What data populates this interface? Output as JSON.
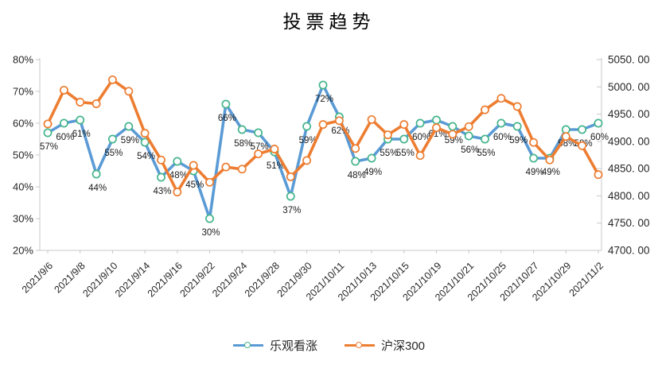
{
  "title": "投票趋势",
  "colors": {
    "axis_line": "#C8C8C8",
    "text": "#262626",
    "optimistic_blue": "#5B9BD5",
    "optimistic_marker_border": "#45B58C",
    "csi300_orange": "#ED7D31"
  },
  "chart_data": {
    "type": "line",
    "title": "投票趋势",
    "n_points": 35,
    "x_tick_labels": [
      "2021/9/6",
      "2021/9/8",
      "2021/9/10",
      "2021/9/14",
      "2021/9/16",
      "2021/9/22",
      "2021/9/24",
      "2021/9/28",
      "2021/9/30",
      "2021/10/11",
      "2021/10/13",
      "2021/10/15",
      "2021/10/19",
      "2021/10/21",
      "2021/10/25",
      "2021/10/27",
      "2021/10/29",
      "2021/11/2"
    ],
    "x_label_every": 2,
    "legend_position": "bottom",
    "grid": "off",
    "left_axis": {
      "min": 20,
      "max": 80,
      "ticks": [
        "80%",
        "70%",
        "60%",
        "50%",
        "40%",
        "30%",
        "20%"
      ]
    },
    "right_axis": {
      "min": 4700,
      "max": 5050,
      "ticks": [
        "5050. 00",
        "5000. 00",
        "4950. 00",
        "4900. 00",
        "4850. 00",
        "4800. 00",
        "4750. 00",
        "4700. 00"
      ]
    },
    "series": [
      {
        "name": "乐观看涨",
        "axis": "left",
        "unit": "%",
        "color": "#5B9BD5",
        "marker_border": "#45B58C",
        "show_data_labels": true,
        "values": [
          57,
          60,
          61,
          44,
          55,
          59,
          54,
          43,
          48,
          45,
          30,
          66,
          58,
          57,
          51,
          37,
          59,
          72,
          62,
          48,
          49,
          55,
          55,
          60,
          61,
          59,
          56,
          55,
          60,
          59,
          49,
          49,
          58,
          58,
          60
        ]
      },
      {
        "name": "沪深300",
        "axis": "right",
        "unit": "",
        "color": "#ED7D31",
        "marker_border": "#ED7D31",
        "show_data_labels": false,
        "values": [
          4932,
          4994,
          4972,
          4969,
          5013,
          4992,
          4915,
          4866,
          4807,
          4856,
          4825,
          4853,
          4849,
          4877,
          4886,
          4835,
          4865,
          4931,
          4938,
          4887,
          4940,
          4912,
          4931,
          4874,
          4925,
          4913,
          4927,
          4958,
          4979,
          4964,
          4898,
          4866,
          4909,
          4892,
          4839
        ]
      }
    ]
  }
}
